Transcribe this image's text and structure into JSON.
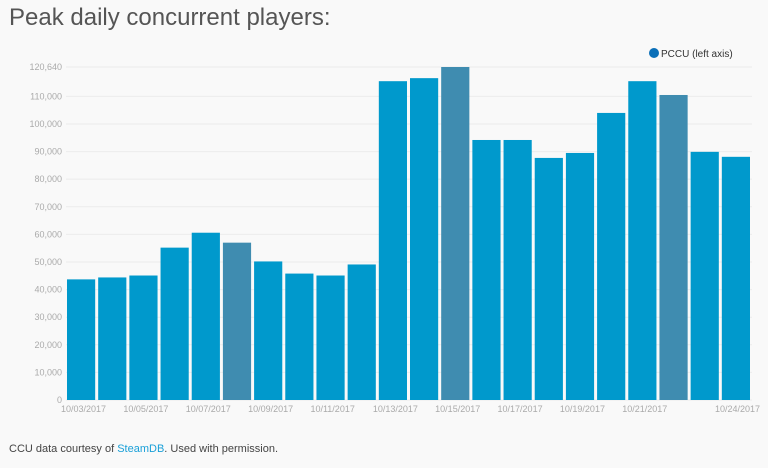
{
  "title": "Peak daily concurrent players:",
  "footer": {
    "prefix": "CCU data courtesy of ",
    "link": "SteamDB",
    "suffix": ". Used with permission."
  },
  "chart_data": {
    "type": "bar",
    "title": "Peak daily concurrent players:",
    "categories": [
      "10/03/2017",
      "10/04/2017",
      "10/05/2017",
      "10/06/2017",
      "10/07/2017",
      "10/08/2017",
      "10/09/2017",
      "10/10/2017",
      "10/11/2017",
      "10/12/2017",
      "10/13/2017",
      "10/14/2017",
      "10/15/2017",
      "10/16/2017",
      "10/17/2017",
      "10/18/2017",
      "10/19/2017",
      "10/20/2017",
      "10/21/2017",
      "10/22/2017",
      "10/23/2017",
      "10/24/2017"
    ],
    "x_tick_labels": [
      "10/03/2017",
      "10/05/2017",
      "10/07/2017",
      "10/09/2017",
      "10/11/2017",
      "10/13/2017",
      "10/15/2017",
      "10/17/2017",
      "10/19/2017",
      "10/21/2017",
      "10/24/2017"
    ],
    "series": [
      {
        "name": "PCCU (left axis)",
        "values": [
          43700,
          44400,
          45100,
          55200,
          60600,
          57000,
          50200,
          45800,
          45100,
          49100,
          115500,
          116600,
          120640,
          94200,
          94200,
          87700,
          89500,
          104000,
          115500,
          110500,
          89900,
          88100
        ]
      }
    ],
    "highlighted": [
      "10/08/2017",
      "10/15/2017",
      "10/22/2017"
    ],
    "y_ticks": [
      "0",
      "10,000",
      "20,000",
      "30,000",
      "40,000",
      "50,000",
      "60,000",
      "70,000",
      "80,000",
      "90,000",
      "100,000",
      "110,000",
      "120,640"
    ],
    "ylim": [
      0,
      120640
    ],
    "legend_position": "top-right",
    "colors": {
      "bar": "#0099cc",
      "highlight": "#3f8cb0",
      "legend_dot": "#0a6fb8"
    }
  }
}
